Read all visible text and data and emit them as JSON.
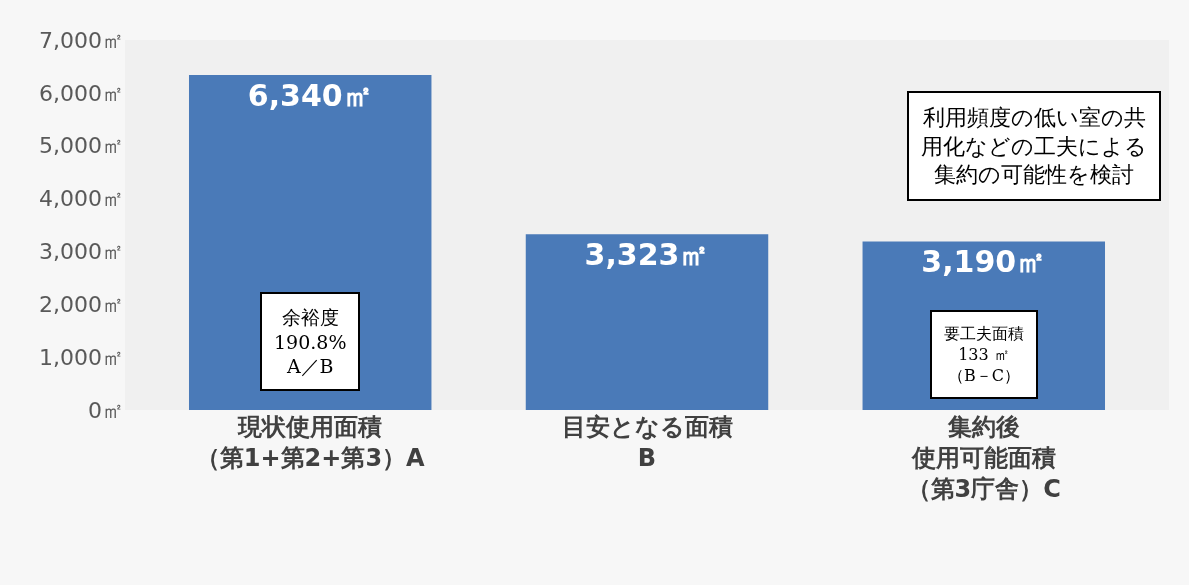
{
  "chart_data": {
    "type": "bar",
    "categories": [
      "現状使用面積（第1+第2+第3）A",
      "目安となる面積\nB",
      "集約後使用可能面積（第3庁舎）C"
    ],
    "values": [
      6340,
      3323,
      3190
    ],
    "color": "#4a7ab8",
    "value_labels": [
      "6,340㎡",
      "3,323㎡",
      "3,190㎡"
    ],
    "ylim": [
      0,
      7000
    ],
    "yticks": [
      {
        "value": 0,
        "label": "0㎡"
      },
      {
        "value": 1000,
        "label": "1,000㎡"
      },
      {
        "value": 2000,
        "label": "2,000㎡"
      },
      {
        "value": 3000,
        "label": "3,000㎡"
      },
      {
        "value": 4000,
        "label": "4,000㎡"
      },
      {
        "value": 5000,
        "label": "5,000㎡"
      },
      {
        "value": 6000,
        "label": "6,000㎡"
      },
      {
        "value": 7000,
        "label": "7,000㎡"
      }
    ],
    "grid": false,
    "annotations": [
      "余裕度\n190.8%\nA／B",
      "利用頻度の低い室の共用化などの工夫による集約の可能性を検討",
      "要工夫面積\n133 ㎡（B－C）"
    ]
  }
}
